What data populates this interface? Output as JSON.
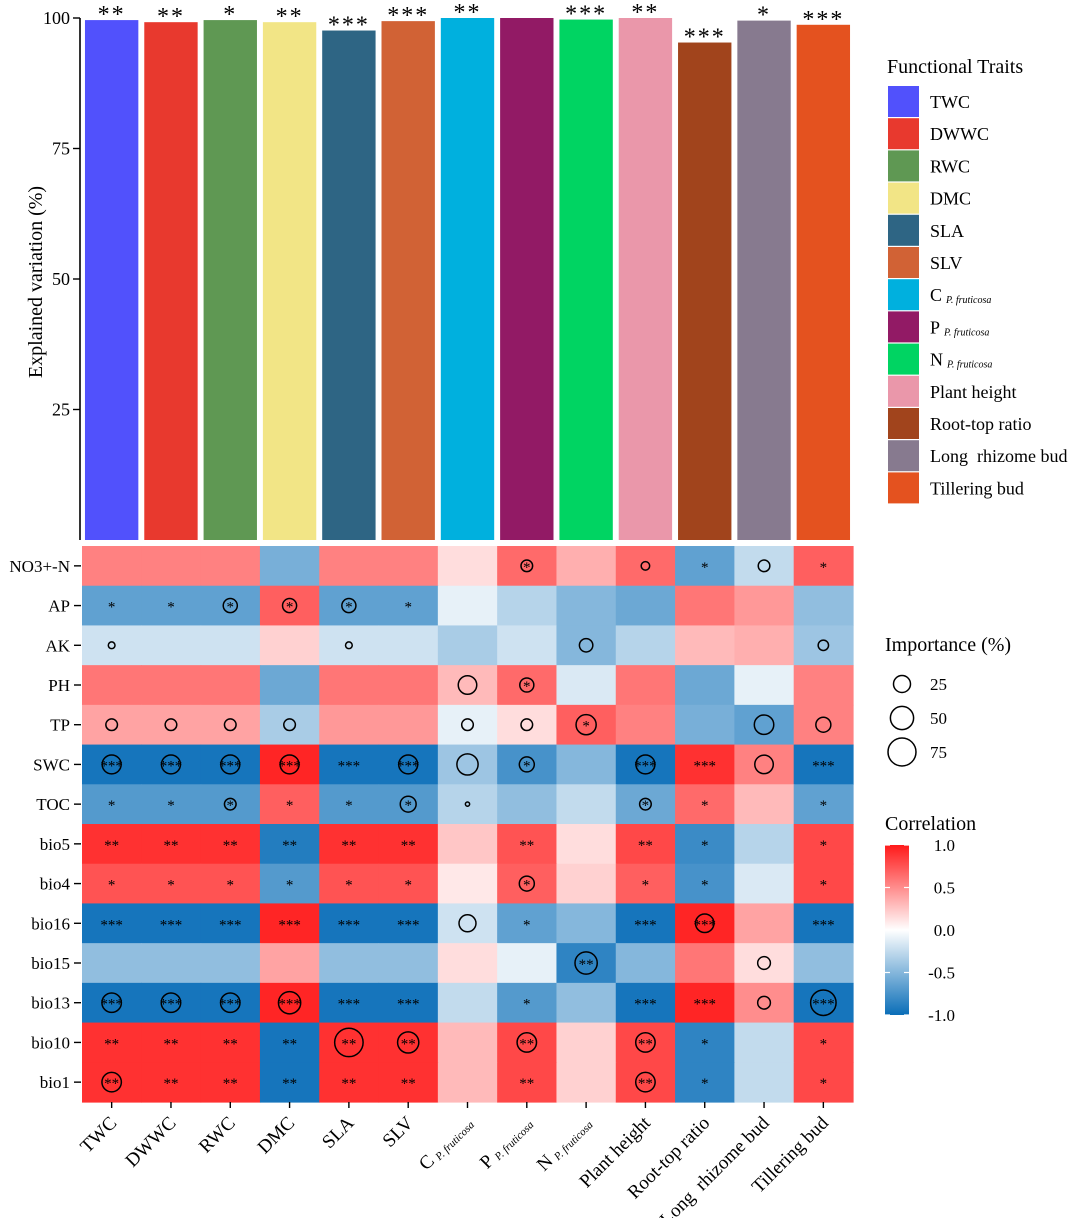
{
  "chart_data": [
    {
      "type": "bar",
      "ylabel": "Explained variation (%)",
      "ylim": [
        0,
        100
      ],
      "yticks": [
        25,
        50,
        75,
        100
      ],
      "categories": [
        "TWC",
        "DWWC",
        "RWC",
        "DMC",
        "SLA",
        "SLV",
        "C P. fruticosa",
        "P P. fruticosa",
        "N P. fruticosa",
        "Plant height",
        "Root-top ratio",
        "Long rhizome bud",
        "Tillering bud"
      ],
      "values": [
        99.6,
        99.2,
        99.6,
        99.2,
        97.6,
        99.4,
        100,
        100,
        99.7,
        100,
        95.3,
        99.5,
        98.7
      ],
      "significance": [
        "**",
        "**",
        "*",
        "**",
        "***",
        "***",
        "**",
        "",
        "***",
        "**",
        "***",
        "*",
        "***"
      ],
      "colors": [
        "#5151FC",
        "#E8392E",
        "#5F9853",
        "#F2E586",
        "#2E6584",
        "#D16235",
        "#00B0DE",
        "#921A65",
        "#00D462",
        "#EA97AA",
        "#A1441C",
        "#877A8F",
        "#E4521F"
      ],
      "legend": {
        "title": "Functional Traits",
        "placement": "right",
        "entries": [
          {
            "name": "TWC"
          },
          {
            "name": "DWWC"
          },
          {
            "name": "RWC"
          },
          {
            "name": "DMC"
          },
          {
            "name": "SLA"
          },
          {
            "name": "SLV"
          },
          {
            "name": "C",
            "sub": "P. fruticosa"
          },
          {
            "name": "P",
            "sub": "P. fruticosa"
          },
          {
            "name": "N",
            "sub": "P. fruticosa"
          },
          {
            "name": "Plant height"
          },
          {
            "name": "Root-top ratio"
          },
          {
            "name": "Long  rhizome bud"
          },
          {
            "name": "Tillering bud"
          }
        ]
      }
    },
    {
      "type": "heatmap",
      "rows": [
        "NO3+-N",
        "AP",
        "AK",
        "PH",
        "TP",
        "SWC",
        "TOC",
        "bio5",
        "bio4",
        "bio16",
        "bio15",
        "bio13",
        "bio10",
        "bio1"
      ],
      "columns": [
        {
          "name": "TWC"
        },
        {
          "name": "DWWC"
        },
        {
          "name": "RWC"
        },
        {
          "name": "DMC"
        },
        {
          "name": "SLA"
        },
        {
          "name": "SLV"
        },
        {
          "name": "C",
          "sub": "P. fruticosa"
        },
        {
          "name": "P",
          "sub": "P. fruticosa"
        },
        {
          "name": "N",
          "sub": "P. fruticosa"
        },
        {
          "name": "Plant height"
        },
        {
          "name": "Root-top ratio"
        },
        {
          "name": "Long  rhizome bud"
        },
        {
          "name": "Tillering bud"
        }
      ],
      "correlation": [
        [
          0.55,
          0.55,
          0.55,
          -0.55,
          0.55,
          0.55,
          0.15,
          0.65,
          0.35,
          0.65,
          -0.65,
          -0.25,
          0.7
        ],
        [
          -0.65,
          -0.65,
          -0.65,
          0.7,
          -0.65,
          -0.65,
          -0.1,
          -0.3,
          -0.5,
          -0.6,
          0.6,
          0.45,
          -0.45
        ],
        [
          -0.2,
          -0.2,
          -0.2,
          0.2,
          -0.2,
          -0.2,
          -0.35,
          -0.2,
          -0.5,
          -0.3,
          0.3,
          0.35,
          -0.4
        ],
        [
          0.6,
          0.6,
          0.6,
          -0.6,
          0.6,
          0.6,
          0.3,
          0.65,
          -0.15,
          0.6,
          -0.6,
          -0.1,
          0.55
        ],
        [
          0.4,
          0.4,
          0.4,
          -0.35,
          0.45,
          0.45,
          -0.1,
          0.15,
          0.7,
          0.55,
          -0.55,
          -0.65,
          0.55
        ],
        [
          -0.95,
          -0.95,
          -0.95,
          0.95,
          -0.95,
          -0.95,
          -0.4,
          -0.75,
          -0.5,
          -0.95,
          0.9,
          0.55,
          -0.95
        ],
        [
          -0.7,
          -0.7,
          -0.7,
          0.7,
          -0.7,
          -0.7,
          -0.3,
          -0.45,
          -0.25,
          -0.6,
          0.65,
          0.3,
          -0.65
        ],
        [
          0.9,
          0.9,
          0.9,
          -0.9,
          0.9,
          0.9,
          0.25,
          0.75,
          0.15,
          0.8,
          -0.8,
          -0.3,
          0.8
        ],
        [
          0.75,
          0.75,
          0.75,
          -0.7,
          0.75,
          0.75,
          0.1,
          0.7,
          0.2,
          0.7,
          -0.75,
          -0.15,
          0.8
        ],
        [
          -0.95,
          -0.95,
          -0.95,
          0.95,
          -0.95,
          -0.95,
          -0.2,
          -0.65,
          -0.5,
          -0.95,
          0.95,
          0.4,
          -0.95
        ],
        [
          -0.45,
          -0.45,
          -0.45,
          0.4,
          -0.45,
          -0.45,
          0.15,
          -0.1,
          -0.85,
          -0.5,
          0.6,
          0.15,
          -0.45
        ],
        [
          -0.95,
          -0.95,
          -0.95,
          0.95,
          -0.95,
          -0.95,
          -0.25,
          -0.7,
          -0.45,
          -0.95,
          0.95,
          0.5,
          -0.95
        ],
        [
          0.9,
          0.9,
          0.9,
          -0.95,
          0.9,
          0.9,
          0.3,
          0.8,
          0.2,
          0.8,
          -0.85,
          -0.25,
          0.8
        ],
        [
          0.9,
          0.9,
          0.9,
          -0.95,
          0.9,
          0.9,
          0.3,
          0.8,
          0.2,
          0.8,
          -0.85,
          -0.25,
          0.8
        ]
      ],
      "significance": [
        [
          "",
          "",
          "",
          "",
          "",
          "",
          "",
          "*",
          "",
          "",
          "*",
          "",
          "*"
        ],
        [
          "*",
          "*",
          "*",
          "*",
          "*",
          "*",
          "",
          "",
          "",
          "",
          "",
          "",
          ""
        ],
        [
          "",
          "",
          "",
          "",
          "",
          "",
          "",
          "",
          "",
          "",
          "",
          "",
          ""
        ],
        [
          "",
          "",
          "",
          "",
          "",
          "",
          "",
          "*",
          "",
          "",
          "",
          "",
          ""
        ],
        [
          "",
          "",
          "",
          "",
          "",
          "",
          "",
          "",
          "*",
          "",
          "",
          "",
          ""
        ],
        [
          "***",
          "***",
          "***",
          "***",
          "***",
          "***",
          "",
          "*",
          "",
          "***",
          "***",
          "",
          "***"
        ],
        [
          "*",
          "*",
          "*",
          "*",
          "*",
          "*",
          "",
          "",
          "",
          "*",
          "*",
          "",
          "*"
        ],
        [
          "**",
          "**",
          "**",
          "**",
          "**",
          "**",
          "",
          "**",
          "",
          "**",
          "*",
          "",
          "*"
        ],
        [
          "*",
          "*",
          "*",
          "*",
          "*",
          "*",
          "",
          "*",
          "",
          "*",
          "*",
          "",
          "*"
        ],
        [
          "***",
          "***",
          "***",
          "***",
          "***",
          "***",
          "",
          "*",
          "",
          "***",
          "***",
          "",
          "***"
        ],
        [
          "",
          "",
          "",
          "",
          "",
          "",
          "",
          "",
          "**",
          "",
          "",
          "",
          ""
        ],
        [
          "***",
          "***",
          "***",
          "***",
          "***",
          "***",
          "",
          "*",
          "",
          "***",
          "***",
          "",
          "***"
        ],
        [
          "**",
          "**",
          "**",
          "**",
          "**",
          "**",
          "",
          "**",
          "",
          "**",
          "*",
          "",
          "*"
        ],
        [
          "**",
          "**",
          "**",
          "**",
          "**",
          "**",
          "",
          "**",
          "",
          "**",
          "*",
          "",
          "*"
        ]
      ],
      "importance": [
        [
          0,
          0,
          0,
          0,
          0,
          0,
          0,
          15,
          0,
          8,
          0,
          15,
          0
        ],
        [
          0,
          0,
          22,
          22,
          22,
          0,
          0,
          0,
          0,
          0,
          0,
          0,
          0
        ],
        [
          5,
          0,
          0,
          0,
          5,
          0,
          0,
          0,
          20,
          0,
          0,
          0,
          12
        ],
        [
          0,
          0,
          0,
          0,
          0,
          0,
          38,
          22,
          0,
          0,
          0,
          0,
          0
        ],
        [
          15,
          15,
          15,
          15,
          0,
          0,
          15,
          15,
          45,
          0,
          0,
          42,
          25
        ],
        [
          40,
          40,
          40,
          40,
          0,
          40,
          50,
          25,
          0,
          40,
          0,
          38,
          0
        ],
        [
          0,
          0,
          15,
          0,
          0,
          28,
          2,
          0,
          0,
          15,
          0,
          0,
          0
        ],
        [
          0,
          0,
          0,
          0,
          0,
          0,
          0,
          0,
          0,
          0,
          0,
          0,
          0
        ],
        [
          0,
          0,
          0,
          0,
          0,
          0,
          0,
          25,
          0,
          0,
          0,
          0,
          0
        ],
        [
          0,
          0,
          0,
          0,
          0,
          0,
          32,
          0,
          0,
          0,
          38,
          0,
          0
        ],
        [
          0,
          0,
          0,
          0,
          0,
          0,
          0,
          0,
          55,
          0,
          0,
          18,
          0
        ],
        [
          42,
          42,
          42,
          55,
          0,
          0,
          0,
          0,
          0,
          0,
          0,
          18,
          72
        ],
        [
          0,
          0,
          0,
          0,
          90,
          50,
          0,
          42,
          0,
          42,
          0,
          0,
          0
        ],
        [
          42,
          0,
          0,
          0,
          0,
          0,
          0,
          0,
          0,
          42,
          0,
          0,
          0
        ]
      ],
      "importance_legend": {
        "title": "Importance (%)",
        "values": [
          25,
          50,
          75
        ]
      },
      "color_scale": {
        "title": "Correlation",
        "range": [
          -1.0,
          1.0
        ],
        "ticks": [
          "1.0",
          "0.5",
          "0.0",
          "-0.5",
          "-1.0"
        ],
        "low": "#0A6EB8",
        "mid": "#FFFFFF",
        "high": "#FF1A1A"
      }
    }
  ]
}
